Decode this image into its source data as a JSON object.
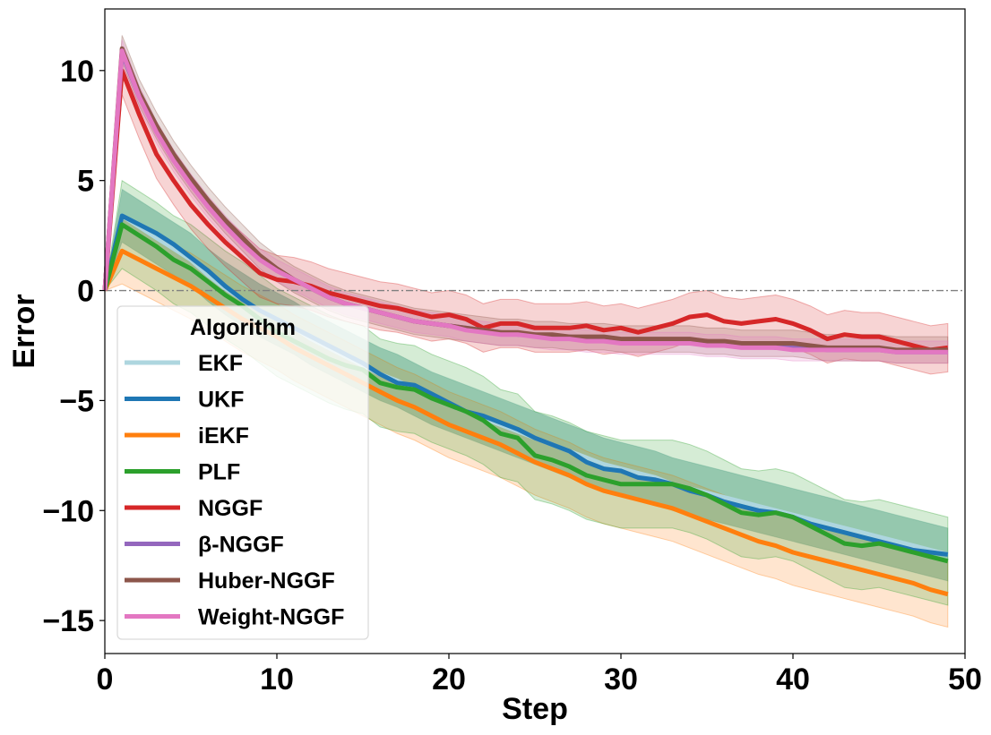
{
  "chart_data": {
    "type": "line",
    "xlabel": "Step",
    "ylabel": "Error",
    "xlim": [
      0,
      50
    ],
    "ylim": [
      -16.5,
      12.8
    ],
    "xticks": [
      "0",
      "10",
      "20",
      "30",
      "40",
      "50"
    ],
    "yticks": [
      "10",
      "5",
      "0",
      "−5",
      "−10",
      "−15"
    ],
    "reference_line": {
      "y": 0,
      "style": "dash-dot",
      "color": "#808080"
    },
    "grid": false,
    "legend": {
      "title": "Algorithm",
      "placement": "lower-left"
    },
    "x": [
      0,
      1,
      2,
      3,
      4,
      5,
      6,
      7,
      8,
      9,
      10,
      11,
      12,
      13,
      14,
      15,
      16,
      17,
      18,
      19,
      20,
      21,
      22,
      23,
      24,
      25,
      26,
      27,
      28,
      29,
      30,
      31,
      32,
      33,
      34,
      35,
      36,
      37,
      38,
      39,
      40,
      41,
      42,
      43,
      44,
      45,
      46,
      47,
      48,
      49
    ],
    "series": [
      {
        "name": "EKF",
        "color": "#aed6df",
        "values": [
          0,
          3.4,
          2.9,
          2.4,
          1.9,
          1.4,
          0.7,
          0.1,
          -0.4,
          -0.9,
          -1.3,
          -1.7,
          -2.2,
          -2.6,
          -3.0,
          -3.4,
          -3.8,
          -4.1,
          -4.5,
          -4.9,
          -5.2,
          -5.5,
          -5.8,
          -6.1,
          -6.4,
          -6.7,
          -7.0,
          -7.3,
          -7.6,
          -7.9,
          -8.1,
          -8.3,
          -8.5,
          -8.8,
          -9.0,
          -9.2,
          -9.4,
          -9.6,
          -9.8,
          -10.0,
          -10.2,
          -10.4,
          -10.6,
          -10.8,
          -11.0,
          -11.2,
          -11.4,
          -11.6,
          -11.8,
          -12.0
        ],
        "band": 1.2,
        "band_color": "#5fa5a0",
        "band_opacity": 0.5
      },
      {
        "name": "UKF",
        "color": "#1f77b4",
        "values": [
          0,
          3.4,
          3.0,
          2.6,
          2.1,
          1.5,
          0.9,
          0.2,
          -0.4,
          -0.9,
          -1.3,
          -1.7,
          -2.1,
          -2.5,
          -2.9,
          -3.3,
          -3.8,
          -4.2,
          -4.3,
          -4.7,
          -5.1,
          -5.5,
          -5.7,
          -6.0,
          -6.3,
          -6.7,
          -7.0,
          -7.3,
          -7.8,
          -8.1,
          -8.2,
          -8.5,
          -8.6,
          -8.8,
          -9.1,
          -9.3,
          -9.6,
          -9.8,
          -10.0,
          -10.1,
          -10.3,
          -10.6,
          -10.8,
          -11.0,
          -11.2,
          -11.4,
          -11.6,
          -11.8,
          -11.9,
          -12.0
        ],
        "band": 0
      },
      {
        "name": "iEKF",
        "color": "#ff7f0e",
        "values": [
          0,
          1.8,
          1.4,
          1.0,
          0.6,
          0.2,
          -0.3,
          -0.8,
          -1.3,
          -1.7,
          -2.1,
          -2.6,
          -3.0,
          -3.4,
          -3.8,
          -4.2,
          -4.6,
          -5.0,
          -5.3,
          -5.7,
          -6.1,
          -6.4,
          -6.7,
          -7.0,
          -7.4,
          -7.8,
          -8.1,
          -8.4,
          -8.8,
          -9.1,
          -9.3,
          -9.5,
          -9.7,
          -9.9,
          -10.2,
          -10.5,
          -10.8,
          -11.1,
          -11.4,
          -11.6,
          -11.9,
          -12.1,
          -12.3,
          -12.5,
          -12.7,
          -12.9,
          -13.1,
          -13.3,
          -13.6,
          -13.8
        ],
        "band": 1.5,
        "band_color": "#ff7f0e",
        "band_opacity": 0.2
      },
      {
        "name": "PLF",
        "color": "#2ca02c",
        "values": [
          0,
          3.0,
          2.5,
          2.0,
          1.4,
          1.0,
          0.4,
          -0.2,
          -0.7,
          -1.3,
          -1.9,
          -2.3,
          -2.7,
          -3.1,
          -3.4,
          -3.6,
          -4.2,
          -4.4,
          -4.5,
          -4.9,
          -5.2,
          -5.5,
          -5.9,
          -6.5,
          -6.7,
          -7.5,
          -7.7,
          -8.0,
          -8.4,
          -8.6,
          -8.8,
          -8.8,
          -8.8,
          -8.8,
          -9.0,
          -9.3,
          -9.7,
          -10.1,
          -10.2,
          -10.1,
          -10.3,
          -10.7,
          -11.1,
          -11.5,
          -11.6,
          -11.5,
          -11.7,
          -11.9,
          -12.1,
          -12.3
        ],
        "band": 2.0,
        "band_color": "#2ca02c",
        "band_opacity": 0.2
      },
      {
        "name": "NGGF",
        "color": "#d62728",
        "values": [
          0,
          10.0,
          8.0,
          6.2,
          5.0,
          3.9,
          3.0,
          2.2,
          1.5,
          0.8,
          0.5,
          0.4,
          0.2,
          -0.1,
          -0.3,
          -0.5,
          -0.7,
          -0.8,
          -1.0,
          -1.2,
          -1.1,
          -1.3,
          -1.7,
          -1.5,
          -1.5,
          -1.7,
          -1.7,
          -1.7,
          -1.6,
          -1.8,
          -1.7,
          -1.9,
          -1.7,
          -1.5,
          -1.2,
          -1.1,
          -1.4,
          -1.5,
          -1.4,
          -1.3,
          -1.5,
          -1.8,
          -2.2,
          -2.0,
          -2.1,
          -2.1,
          -2.3,
          -2.5,
          -2.7,
          -2.6
        ],
        "band": 1.1,
        "band_color": "#d62728",
        "band_opacity": 0.2
      },
      {
        "name": "β-NGGF",
        "color": "#9467bd",
        "values": [
          0,
          10.8,
          8.8,
          7.3,
          6.0,
          4.9,
          3.9,
          3.0,
          2.2,
          1.5,
          0.9,
          0.5,
          0.1,
          -0.3,
          -0.6,
          -0.8,
          -1.0,
          -1.2,
          -1.4,
          -1.5,
          -1.6,
          -1.7,
          -1.8,
          -1.9,
          -2.0,
          -2.0,
          -2.1,
          -2.1,
          -2.2,
          -2.2,
          -2.3,
          -2.3,
          -2.3,
          -2.4,
          -2.4,
          -2.4,
          -2.5,
          -2.5,
          -2.5,
          -2.6,
          -2.6,
          -2.6,
          -2.7,
          -2.7,
          -2.7,
          -2.7,
          -2.8,
          -2.8,
          -2.8,
          -2.8
        ],
        "band": 0
      },
      {
        "name": "Huber-NGGF",
        "color": "#8c564b",
        "values": [
          0,
          11.0,
          9.0,
          7.5,
          6.2,
          5.1,
          4.1,
          3.2,
          2.4,
          1.6,
          1.0,
          0.5,
          0.1,
          -0.3,
          -0.6,
          -0.8,
          -1.0,
          -1.2,
          -1.4,
          -1.5,
          -1.6,
          -1.7,
          -1.8,
          -1.9,
          -1.9,
          -2.0,
          -2.0,
          -2.1,
          -2.1,
          -2.1,
          -2.2,
          -2.2,
          -2.2,
          -2.2,
          -2.2,
          -2.3,
          -2.3,
          -2.4,
          -2.4,
          -2.4,
          -2.4,
          -2.5,
          -2.6,
          -2.6,
          -2.6,
          -2.6,
          -2.7,
          -2.7,
          -2.7,
          -2.7
        ],
        "band": 0.6,
        "band_color": "#8c564b",
        "band_opacity": 0.2
      },
      {
        "name": "Weight-NGGF",
        "color": "#e377c2",
        "values": [
          0,
          10.9,
          8.8,
          7.2,
          5.9,
          4.8,
          3.8,
          2.9,
          2.1,
          1.4,
          0.9,
          0.5,
          0.1,
          -0.3,
          -0.6,
          -0.8,
          -1.0,
          -1.2,
          -1.4,
          -1.5,
          -1.6,
          -1.8,
          -1.9,
          -2.0,
          -2.0,
          -2.1,
          -2.2,
          -2.2,
          -2.3,
          -2.3,
          -2.4,
          -2.4,
          -2.4,
          -2.4,
          -2.4,
          -2.5,
          -2.5,
          -2.6,
          -2.6,
          -2.6,
          -2.7,
          -2.7,
          -2.7,
          -2.7,
          -2.7,
          -2.7,
          -2.8,
          -2.8,
          -2.8,
          -2.8
        ],
        "band": 0.5,
        "band_color": "#e377c2",
        "band_opacity": 0.2
      }
    ]
  }
}
